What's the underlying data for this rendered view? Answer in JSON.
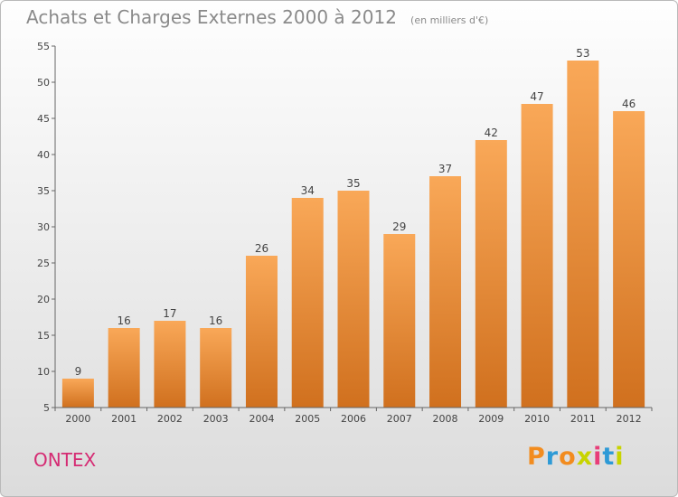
{
  "header": {
    "title": "Achats et Charges Externes 2000 à 2012",
    "unit_note": "(en milliers d'€)"
  },
  "footer": {
    "commune": "ONTEX",
    "logo_text": "Proxiti"
  },
  "colors": {
    "bar_top": "#f9a858",
    "bar_bottom": "#d0701e",
    "title": "#8a8a8a",
    "commune": "#d52b73",
    "logo": [
      "#f28c1f",
      "#2e9ad6",
      "#f28c1f",
      "#c8d400",
      "#e83e79",
      "#2e9ad6",
      "#c8d400"
    ]
  },
  "chart_data": {
    "type": "bar",
    "title": "Achats et Charges Externes 2000 à 2012",
    "subtitle": "(en milliers d'€)",
    "categories": [
      "2000",
      "2001",
      "2002",
      "2003",
      "2004",
      "2005",
      "2006",
      "2007",
      "2008",
      "2009",
      "2010",
      "2011",
      "2012"
    ],
    "values": [
      9,
      16,
      17,
      16,
      26,
      34,
      35,
      29,
      37,
      42,
      47,
      53,
      46
    ],
    "ylim": [
      5,
      55
    ],
    "yticks": [
      5,
      10,
      15,
      20,
      25,
      30,
      35,
      40,
      45,
      50,
      55
    ],
    "grid": false,
    "data_labels": true,
    "xlabel": "",
    "ylabel": ""
  }
}
